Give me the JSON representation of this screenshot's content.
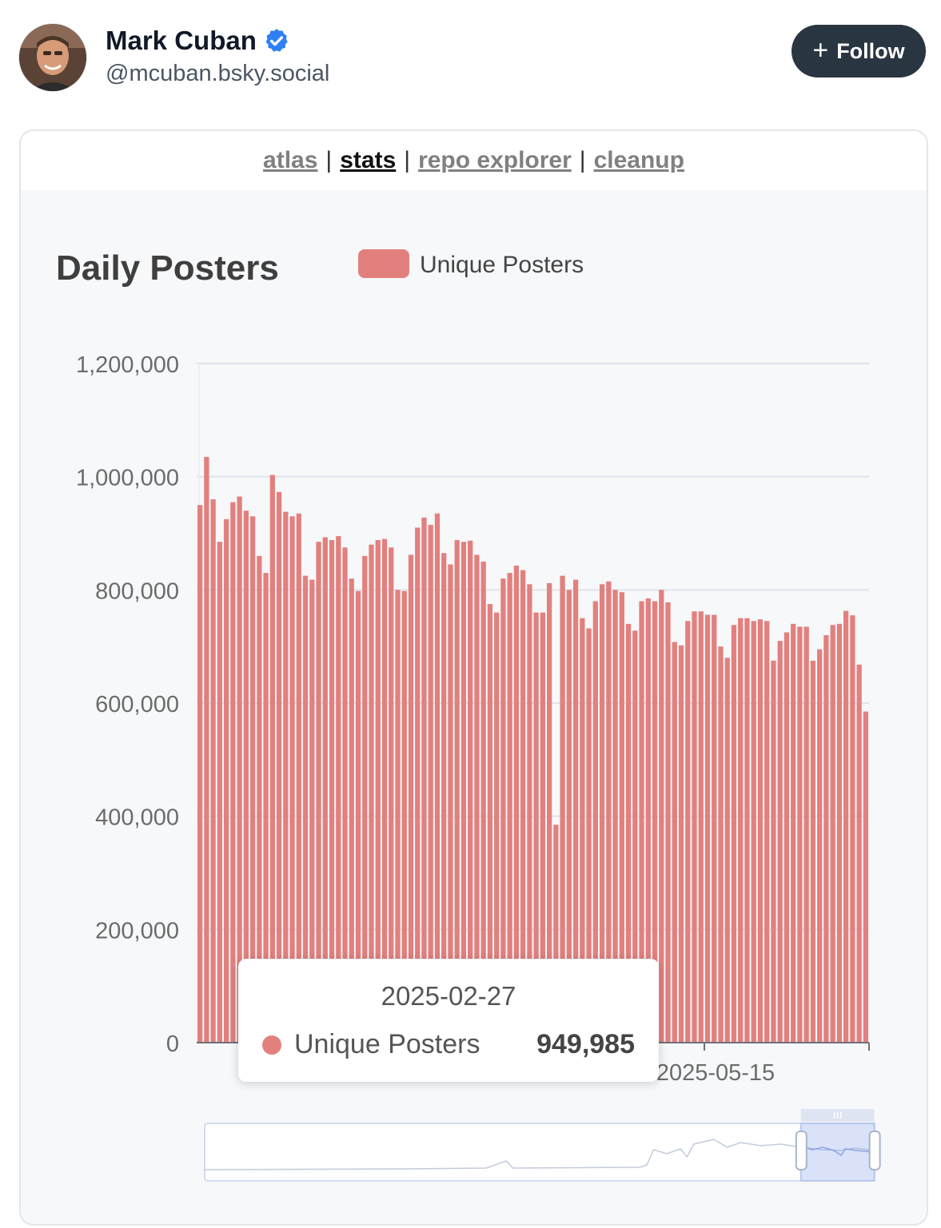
{
  "post": {
    "author_name": "Mark Cuban",
    "handle": "@mcuban.bsky.social",
    "follow_label": "Follow",
    "follow_icon": "plus-icon",
    "verified_icon": "verified-badge-icon",
    "accent_color": "#2a3542"
  },
  "nav": {
    "links": [
      {
        "label": "atlas",
        "active": false
      },
      {
        "label": "stats",
        "active": true
      },
      {
        "label": "repo explorer",
        "active": false
      },
      {
        "label": "cleanup",
        "active": false
      }
    ],
    "separator": "|"
  },
  "chart_data": {
    "type": "bar",
    "title": "Daily Posters",
    "legend": [
      "Unique Posters"
    ],
    "legend_placement": "top",
    "series": [
      {
        "name": "Unique Posters",
        "color": "#e2807e",
        "values": [
          950000,
          1035000,
          960000,
          885000,
          925000,
          955000,
          965000,
          940000,
          930000,
          860000,
          830000,
          1003000,
          973000,
          938000,
          930000,
          935000,
          825000,
          818000,
          885000,
          893000,
          888000,
          895000,
          875000,
          820000,
          798000,
          860000,
          880000,
          888000,
          890000,
          875000,
          800000,
          798000,
          862000,
          910000,
          928000,
          915000,
          935000,
          865000,
          845000,
          888000,
          885000,
          887000,
          862000,
          850000,
          775000,
          760000,
          820000,
          830000,
          843000,
          835000,
          810000,
          760000,
          760000,
          812000,
          385000,
          825000,
          800000,
          818000,
          750000,
          732000,
          780000,
          810000,
          815000,
          800000,
          796000,
          740000,
          728000,
          780000,
          785000,
          780000,
          800000,
          778000,
          708000,
          702000,
          745000,
          762000,
          762000,
          756000,
          756000,
          700000,
          680000,
          738000,
          750000,
          750000,
          745000,
          748000,
          745000,
          675000,
          710000,
          725000,
          740000,
          735000,
          735000,
          675000,
          695000,
          720000,
          738000,
          740000,
          763000,
          755000,
          668000,
          585000
        ]
      }
    ],
    "ylim": [
      0,
      1200000
    ],
    "yticks": [
      "0",
      "200,000",
      "400,000",
      "600,000",
      "800,000",
      "1,000,000",
      "1,200,000"
    ],
    "xticks_visible": [
      "2025-05-15"
    ],
    "grid": true,
    "tooltip": {
      "date": "2025-02-27",
      "series": "Unique Posters",
      "value": "949,985"
    },
    "slider_window": {
      "start_fraction": 0.89,
      "end_fraction": 0.99
    }
  }
}
